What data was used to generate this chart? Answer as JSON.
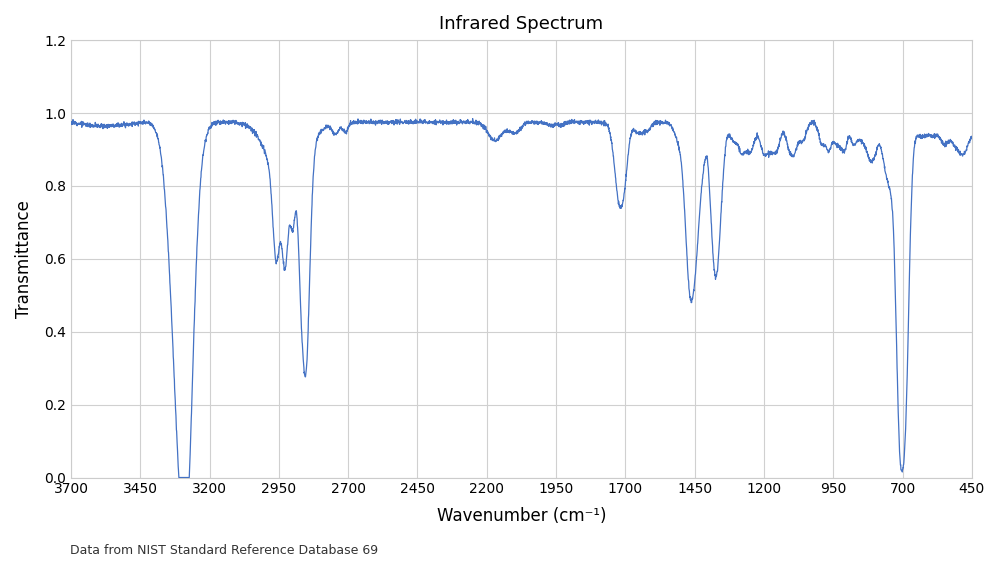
{
  "title": "Infrared Spectrum",
  "xlabel": "Wavenumber (cm⁻¹)",
  "ylabel": "Transmittance",
  "footnote": "Data from NIST Standard Reference Database 69",
  "xlim": [
    3700,
    450
  ],
  "ylim": [
    0,
    1.2
  ],
  "yticks": [
    0,
    0.2,
    0.4,
    0.6,
    0.8,
    1.0,
    1.2
  ],
  "xticks": [
    3700,
    3450,
    3200,
    2950,
    2700,
    2450,
    2200,
    1950,
    1700,
    1450,
    1200,
    950,
    700,
    450
  ],
  "line_color": "#4472C4",
  "background_color": "#FFFFFF",
  "grid_color": "#D0D0D0",
  "title_fontsize": 13,
  "label_fontsize": 12,
  "tick_fontsize": 10,
  "footnote_fontsize": 9
}
